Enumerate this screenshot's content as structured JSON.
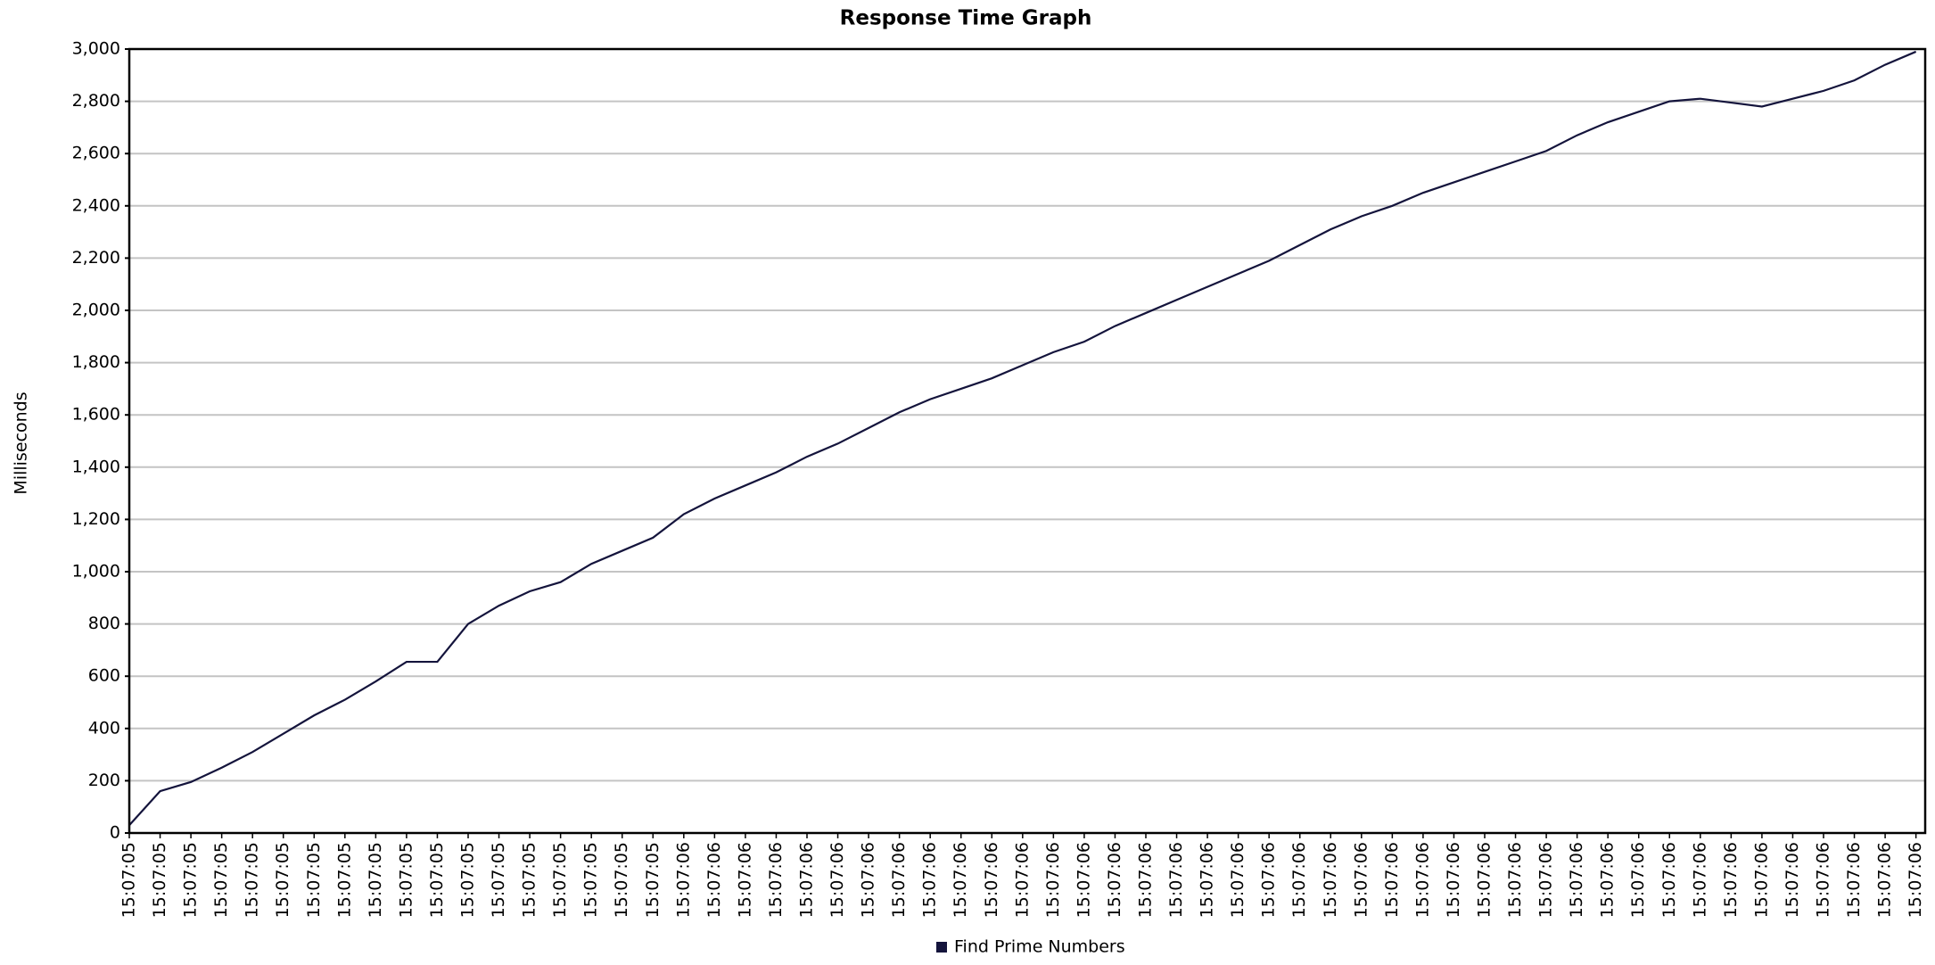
{
  "chart_data": {
    "type": "line",
    "title": "Response Time Graph",
    "y_label": "Milliseconds",
    "categories": [
      "15:07:05",
      "15:07:05",
      "15:07:05",
      "15:07:05",
      "15:07:05",
      "15:07:05",
      "15:07:05",
      "15:07:05",
      "15:07:05",
      "15:07:05",
      "15:07:05",
      "15:07:05",
      "15:07:05",
      "15:07:05",
      "15:07:05",
      "15:07:05",
      "15:07:05",
      "15:07:05",
      "15:07:06",
      "15:07:06",
      "15:07:06",
      "15:07:06",
      "15:07:06",
      "15:07:06",
      "15:07:06",
      "15:07:06",
      "15:07:06",
      "15:07:06",
      "15:07:06",
      "15:07:06",
      "15:07:06",
      "15:07:06",
      "15:07:06",
      "15:07:06",
      "15:07:06",
      "15:07:06",
      "15:07:06",
      "15:07:06",
      "15:07:06",
      "15:07:06",
      "15:07:06",
      "15:07:06",
      "15:07:06",
      "15:07:06",
      "15:07:06",
      "15:07:06",
      "15:07:06",
      "15:07:06",
      "15:07:06",
      "15:07:06",
      "15:07:06",
      "15:07:06",
      "15:07:06",
      "15:07:06",
      "15:07:06",
      "15:07:06",
      "15:07:06",
      "15:07:06",
      "15:07:06"
    ],
    "series": [
      {
        "name": "Find Prime Numbers",
        "color": "#14143c",
        "values": [
          30,
          160,
          195,
          250,
          310,
          380,
          450,
          510,
          580,
          655,
          655,
          800,
          870,
          925,
          960,
          1030,
          1080,
          1130,
          1220,
          1280,
          1330,
          1380,
          1440,
          1490,
          1550,
          1610,
          1660,
          1700,
          1740,
          1790,
          1840,
          1880,
          1940,
          1990,
          2040,
          2090,
          2140,
          2190,
          2250,
          2310,
          2360,
          2400,
          2450,
          2490,
          2530,
          2570,
          2610,
          2670,
          2720,
          2760,
          2800,
          2810,
          2795,
          2780,
          2810,
          2840,
          2880,
          2940,
          2990
        ]
      }
    ],
    "ylim": [
      0,
      3000
    ],
    "yticks": [
      0,
      200,
      400,
      600,
      800,
      {
        "value": 1000,
        "label": "1,000"
      },
      {
        "value": 1200,
        "label": "1,200"
      },
      {
        "value": 1400,
        "label": "1,400"
      },
      {
        "value": 1600,
        "label": "1,600"
      },
      {
        "value": 1800,
        "label": "1,800"
      },
      {
        "value": 2000,
        "label": "2,000"
      },
      {
        "value": 2200,
        "label": "2,200"
      },
      {
        "value": 2400,
        "label": "2,400"
      },
      {
        "value": 2600,
        "label": "2,600"
      },
      {
        "value": 2800,
        "label": "2,800"
      },
      {
        "value": 3000,
        "label": "3,000"
      }
    ],
    "grid": true
  }
}
